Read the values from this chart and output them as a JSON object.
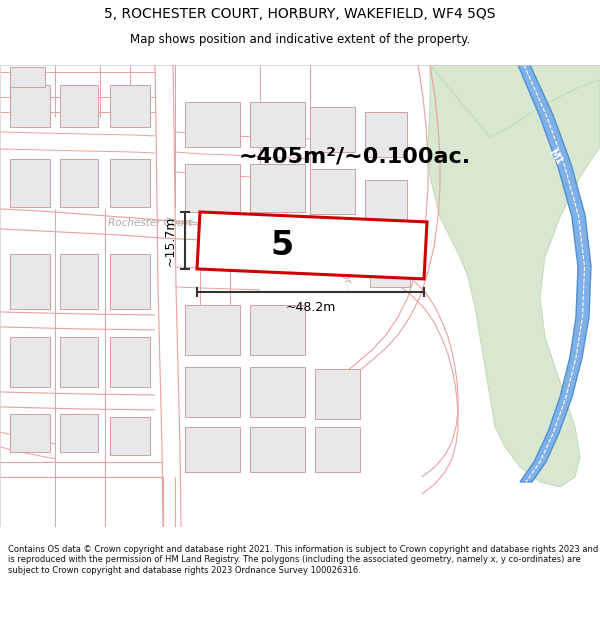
{
  "title_line1": "5, ROCHESTER COURT, HORBURY, WAKEFIELD, WF4 5QS",
  "title_line2": "Map shows position and indicative extent of the property.",
  "area_text": "~405m²/~0.100ac.",
  "property_number": "5",
  "dim_width": "~48.2m",
  "dim_height": "~15.7m",
  "footer_text": "Contains OS data © Crown copyright and database right 2021. This information is subject to Crown copyright and database rights 2023 and is reproduced with the permission of HM Land Registry. The polygons (including the associated geometry, namely x, y co-ordinates) are subject to Crown copyright and database rights 2023 Ordnance Survey 100026316.",
  "map_bg": "#ffffff",
  "road_line_color": "#e8a0a0",
  "building_fill": "#e8e8e8",
  "building_outline": "#d0a0a0",
  "green_fill": "#d8e8d0",
  "green_outline": "#c0d8b8",
  "blue_fill": "#80b0e8",
  "blue_outline": "#5090d0",
  "blue_road_fill": "#a0c0f0",
  "property_fill": "#ffffff",
  "property_outline": "#cc0000",
  "dim_color": "#333333",
  "road_label_color": "#aaaaaa",
  "title_color": "#000000",
  "footer_color": "#111111",
  "white_road_fill": "#ffffff"
}
